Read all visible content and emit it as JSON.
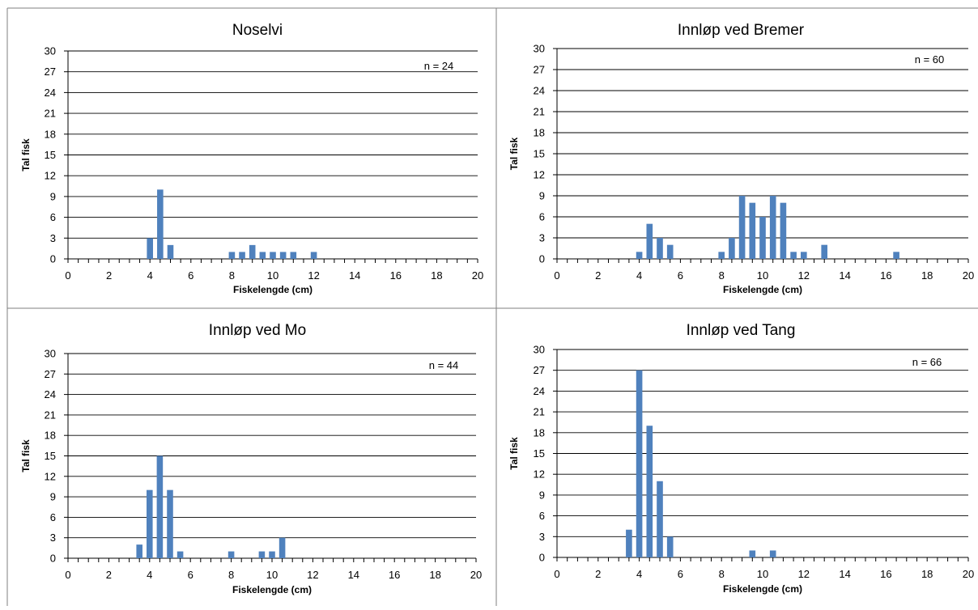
{
  "chart_data": [
    {
      "type": "bar",
      "title": "Noselvi",
      "xlabel": "Fiskelengde (cm)",
      "ylabel": "Tal fisk",
      "annotation": "n = 24",
      "xlim": [
        0,
        20
      ],
      "ylim": [
        0,
        30
      ],
      "xticks": [
        "0",
        "2",
        "4",
        "6",
        "8",
        "10",
        "12",
        "14",
        "16",
        "18",
        "20"
      ],
      "yticks": [
        "0",
        "3",
        "6",
        "9",
        "12",
        "15",
        "18",
        "21",
        "24",
        "27",
        "30"
      ],
      "grid": "horizontal",
      "bar_color": "#4f81bd",
      "x": [
        4,
        4.5,
        5,
        8,
        8.5,
        9,
        9.5,
        10,
        10.5,
        11,
        12
      ],
      "values": [
        3,
        10,
        2,
        1,
        1,
        2,
        1,
        1,
        1,
        1,
        1
      ]
    },
    {
      "type": "bar",
      "title": "Innløp ved Bremer",
      "xlabel": "Fiskelengde (cm)",
      "ylabel": "Tal fisk",
      "annotation": "n = 60",
      "xlim": [
        0,
        20
      ],
      "ylim": [
        0,
        30
      ],
      "xticks": [
        "0",
        "2",
        "4",
        "6",
        "8",
        "10",
        "12",
        "14",
        "16",
        "18",
        "20"
      ],
      "yticks": [
        "0",
        "3",
        "6",
        "9",
        "12",
        "15",
        "18",
        "21",
        "24",
        "27",
        "30"
      ],
      "grid": "horizontal",
      "bar_color": "#4f81bd",
      "x": [
        4,
        4.5,
        5,
        5.5,
        8,
        8.5,
        9,
        9.5,
        10,
        10.5,
        11,
        11.5,
        12,
        13,
        16.5
      ],
      "values": [
        1,
        5,
        3,
        2,
        1,
        3,
        9,
        8,
        6,
        9,
        8,
        1,
        1,
        2,
        1
      ]
    },
    {
      "type": "bar",
      "title": "Innløp ved Mo",
      "xlabel": "Fiskelengde (cm)",
      "ylabel": "Tal fisk",
      "annotation": "n = 44",
      "xlim": [
        0,
        20
      ],
      "ylim": [
        0,
        30
      ],
      "xticks": [
        "0",
        "2",
        "4",
        "6",
        "8",
        "10",
        "12",
        "14",
        "16",
        "18",
        "20"
      ],
      "yticks": [
        "0",
        "3",
        "6",
        "9",
        "12",
        "15",
        "18",
        "21",
        "24",
        "27",
        "30"
      ],
      "grid": "horizontal",
      "bar_color": "#4f81bd",
      "x": [
        3.5,
        4,
        4.5,
        5,
        5.5,
        8,
        9.5,
        10,
        10.5
      ],
      "values": [
        2,
        10,
        15,
        10,
        1,
        1,
        1,
        1,
        3
      ]
    },
    {
      "type": "bar",
      "title": "Innløp ved Tang",
      "xlabel": "Fiskelengde (cm)",
      "ylabel": "Tal fisk",
      "annotation": "n = 66",
      "xlim": [
        0,
        20
      ],
      "ylim": [
        0,
        30
      ],
      "xticks": [
        "0",
        "2",
        "4",
        "6",
        "8",
        "10",
        "12",
        "14",
        "16",
        "18",
        "20"
      ],
      "yticks": [
        "0",
        "3",
        "6",
        "9",
        "12",
        "15",
        "18",
        "21",
        "24",
        "27",
        "30"
      ],
      "grid": "horizontal",
      "bar_color": "#4f81bd",
      "x": [
        3.5,
        4,
        4.5,
        5,
        5.5,
        9.5,
        10.5
      ],
      "values": [
        4,
        27,
        19,
        11,
        3,
        1,
        1
      ]
    }
  ]
}
